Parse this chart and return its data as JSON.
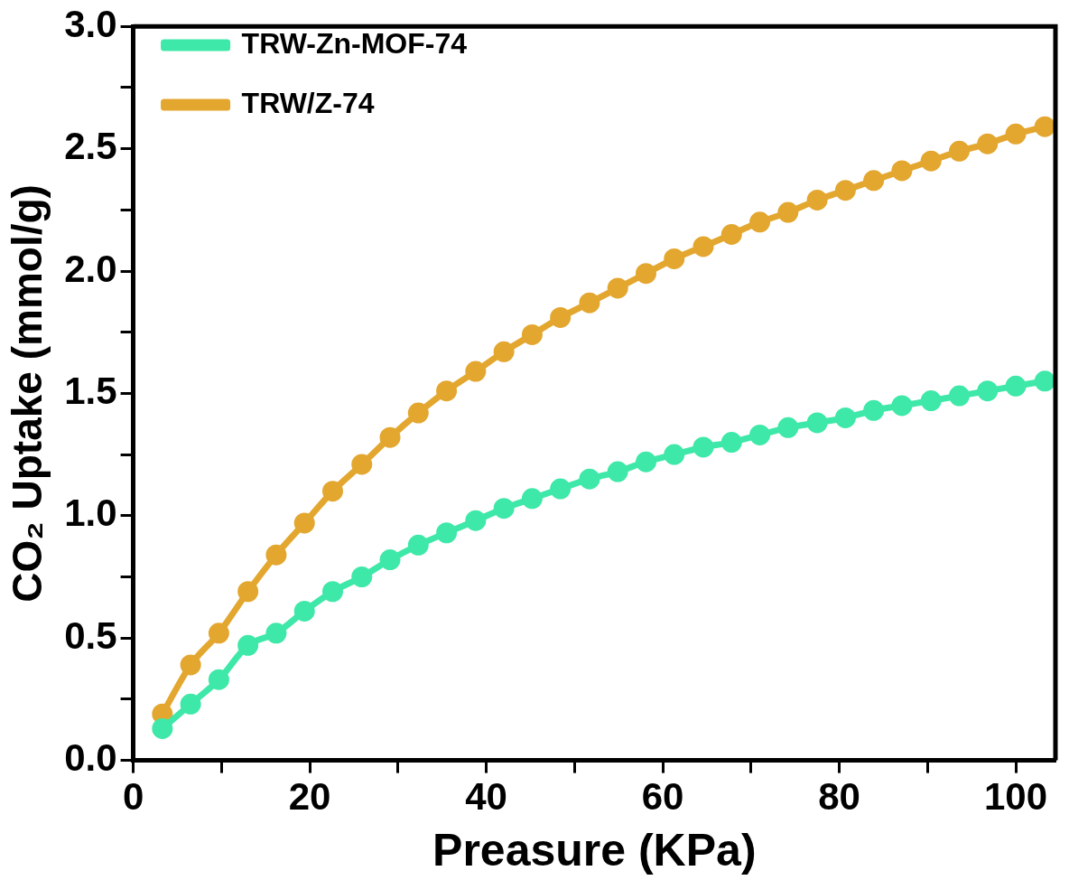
{
  "chart_data": {
    "type": "line",
    "xlabel": "Preasure (KPa)",
    "ylabel": "CO₂ Uptake (mmol/g)",
    "xlim": [
      0,
      104.5
    ],
    "ylim": [
      0,
      3
    ],
    "xticks": [
      0,
      {
        "value": 10,
        "label": null
      },
      20,
      {
        "value": 30,
        "label": null
      },
      40,
      {
        "value": 50,
        "label": null
      },
      60,
      {
        "value": 70,
        "label": null
      },
      80,
      {
        "value": 90,
        "label": null
      },
      100
    ],
    "yticks": [
      {
        "value": 0,
        "label": "0.0"
      },
      {
        "value": 0.25,
        "label": null
      },
      {
        "value": 0.5,
        "label": "0.5"
      },
      {
        "value": 0.75,
        "label": null
      },
      {
        "value": 1,
        "label": "1.0"
      },
      {
        "value": 1.25,
        "label": null
      },
      {
        "value": 1.5,
        "label": "1.5"
      },
      {
        "value": 1.75,
        "label": null
      },
      {
        "value": 2,
        "label": "2.0"
      },
      {
        "value": 2.25,
        "label": null
      },
      {
        "value": 2.5,
        "label": "2.5"
      },
      {
        "value": 2.75,
        "label": null
      },
      {
        "value": 3,
        "label": "3.0"
      }
    ],
    "x": [
      3.3,
      6.5,
      9.7,
      13,
      16.2,
      19.4,
      22.6,
      25.9,
      29.1,
      32.3,
      35.5,
      38.8,
      42,
      45.2,
      48.4,
      51.7,
      54.9,
      58.1,
      61.3,
      64.6,
      67.8,
      71,
      74.2,
      77.5,
      80.7,
      83.9,
      87.1,
      90.4,
      93.6,
      96.8,
      100,
      103.3
    ],
    "series": [
      {
        "name": "TRW-Zn-MOF-74",
        "color": "#3ee8a8",
        "values": [
          0.13,
          0.23,
          0.33,
          0.47,
          0.52,
          0.61,
          0.69,
          0.75,
          0.82,
          0.88,
          0.93,
          0.98,
          1.03,
          1.07,
          1.11,
          1.15,
          1.18,
          1.22,
          1.25,
          1.28,
          1.3,
          1.33,
          1.36,
          1.38,
          1.4,
          1.43,
          1.45,
          1.47,
          1.49,
          1.51,
          1.53,
          1.55
        ]
      },
      {
        "name": "TRW/Z-74",
        "color": "#e3a72f",
        "values": [
          0.19,
          0.39,
          0.52,
          0.69,
          0.84,
          0.97,
          1.1,
          1.21,
          1.32,
          1.42,
          1.51,
          1.59,
          1.67,
          1.74,
          1.81,
          1.87,
          1.93,
          1.99,
          2.05,
          2.1,
          2.15,
          2.2,
          2.24,
          2.29,
          2.33,
          2.37,
          2.41,
          2.45,
          2.49,
          2.52,
          2.56,
          2.59
        ]
      }
    ],
    "legend": "top left",
    "marker": "circle",
    "line_style": "solid",
    "grid": false
  }
}
